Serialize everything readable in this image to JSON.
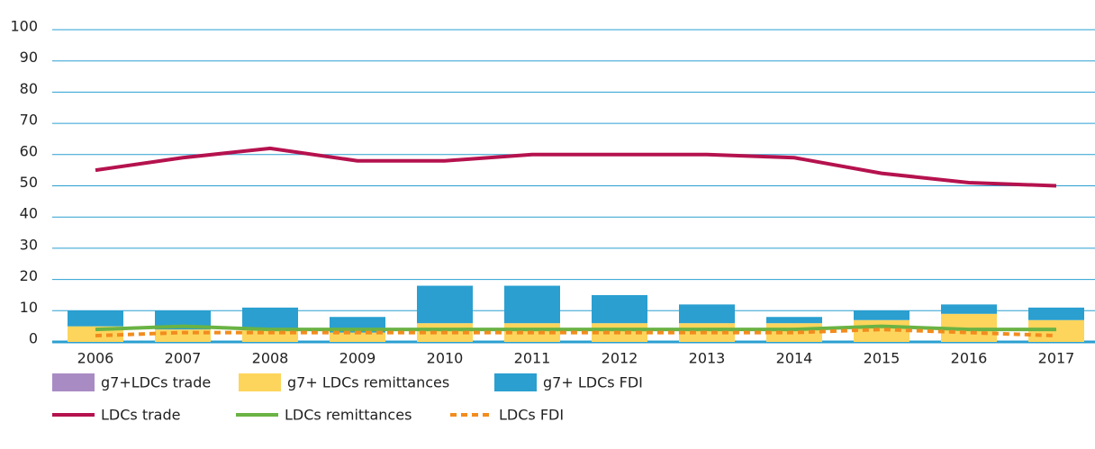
{
  "chart_data": {
    "type": "bar",
    "categories": [
      "2006",
      "2007",
      "2008",
      "2009",
      "2010",
      "2011",
      "2012",
      "2013",
      "2014",
      "2015",
      "2016",
      "2017"
    ],
    "series": [
      {
        "name": "g7+LDCs trade",
        "color": "#a98bc4",
        "kind": "bar",
        "values": [
          0,
          0,
          0,
          0,
          0,
          0,
          0,
          0,
          0,
          0,
          0,
          0
        ]
      },
      {
        "name": "g7+ LDCs remittances",
        "color": "#fdd55c",
        "kind": "bar",
        "values": [
          5,
          4,
          4,
          3,
          6,
          6,
          6,
          6,
          6,
          7,
          9,
          7
        ]
      },
      {
        "name": "g7+ LDCs FDI",
        "color": "#2a9fd0",
        "kind": "bar",
        "values": [
          5,
          6,
          7,
          5,
          12,
          12,
          9,
          6,
          2,
          3,
          3,
          4
        ]
      },
      {
        "name": "LDCs trade",
        "color": "#b5124e",
        "kind": "line",
        "values": [
          55,
          59,
          62,
          58,
          58,
          60,
          60,
          60,
          59,
          54,
          51,
          50
        ]
      },
      {
        "name": "LDCs remittances",
        "color": "#6ab344",
        "kind": "line",
        "values": [
          4,
          5,
          4,
          4,
          4,
          4,
          4,
          4,
          4,
          5,
          4,
          4
        ]
      },
      {
        "name": "LDCs FDI",
        "color": "#f28c1e",
        "kind": "line",
        "dashed": true,
        "values": [
          2,
          3,
          3,
          3,
          3,
          3,
          3,
          3,
          3,
          4,
          3,
          2
        ]
      }
    ],
    "ylim": [
      0,
      100
    ],
    "yticks": [
      0,
      10,
      20,
      30,
      40,
      50,
      60,
      70,
      80,
      90,
      100
    ],
    "grid": true,
    "legend": "bottom"
  }
}
